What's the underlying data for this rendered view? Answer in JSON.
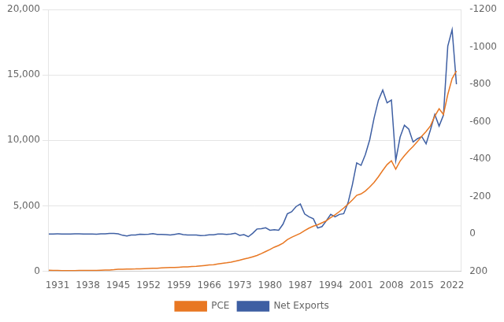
{
  "chart_data": {
    "type": "line",
    "grid": "y",
    "legend": "bottom",
    "x": [
      1929,
      1930,
      1931,
      1932,
      1933,
      1934,
      1935,
      1936,
      1937,
      1938,
      1939,
      1940,
      1941,
      1942,
      1943,
      1944,
      1945,
      1946,
      1947,
      1948,
      1949,
      1950,
      1951,
      1952,
      1953,
      1954,
      1955,
      1956,
      1957,
      1958,
      1959,
      1960,
      1961,
      1962,
      1963,
      1964,
      1965,
      1966,
      1967,
      1968,
      1969,
      1970,
      1971,
      1972,
      1973,
      1974,
      1975,
      1976,
      1977,
      1978,
      1979,
      1980,
      1981,
      1982,
      1983,
      1984,
      1985,
      1986,
      1987,
      1988,
      1989,
      1990,
      1991,
      1992,
      1993,
      1994,
      1995,
      1996,
      1997,
      1998,
      1999,
      2000,
      2001,
      2002,
      2003,
      2004,
      2005,
      2006,
      2007,
      2008,
      2009,
      2010,
      2011,
      2012,
      2013,
      2014,
      2015,
      2016,
      2017,
      2018,
      2019,
      2020,
      2021,
      2022,
      2023
    ],
    "xlim": [
      1929,
      2024
    ],
    "xticks": [
      1931,
      1938,
      1945,
      1952,
      1959,
      1966,
      1973,
      1980,
      1987,
      1994,
      2001,
      2008,
      2015,
      2022
    ],
    "ylim": [
      0,
      20000
    ],
    "yticks": [
      0,
      {
        "value": 5000,
        "label": "5,000"
      },
      {
        "value": 10000,
        "label": "10,000"
      },
      {
        "value": 15000,
        "label": "15,000"
      },
      {
        "value": 20000,
        "label": "20,000"
      }
    ],
    "y2lim": [
      200,
      -1200
    ],
    "y2ticks": [
      200,
      0,
      -200,
      -400,
      -600,
      -800,
      -1000,
      -1200
    ],
    "series": [
      {
        "name": "PCE",
        "color": "#E87722",
        "values": [
          77.3,
          69.9,
          61.3,
          49.3,
          46.4,
          51.9,
          56.3,
          62.6,
          67.3,
          64.6,
          67.6,
          71.9,
          81.9,
          89.7,
          100.5,
          121.7,
          150.4,
          163.0,
          176.8,
          178.3,
          180.4,
          192.2,
          208.5,
          219.9,
          232.6,
          237.9,
          257.9,
          270.4,
          285.2,
          289.5,
          313.5,
          331.7,
          342.1,
          363.4,
          382.7,
          411.4,
          443.8,
          481.9,
          509.3,
          558.0,
          605.2,
          648.9,
          702.5,
          770.6,
          852.4,
          933.4,
          1012.8,
          1107.5,
          1210.0,
          1350.8,
          1509.8,
          1668.1,
          1843.2,
          1974.8,
          2153.0,
          2416.8,
          2596.4,
          2752.0,
          2900.1,
          3108.7,
          3297.3,
          3448.6,
          3558.0,
          3706.0,
          3861.0,
          4105.8,
          4316.8,
          4559.9,
          4831.0,
          5132.2,
          5448.1,
          5803.1,
          5911.8,
          6136.3,
          6438.6,
          6786.4,
          7220.0,
          7702.4,
          8148.1,
          8439.0,
          7796.1,
          8421.9,
          8830.8,
          9212.5,
          9541.9,
          9905.3,
          10317.3,
          10680.7,
          11106.7,
          11844.3,
          12419.4,
          11972.0,
          13505.5,
          14718.3,
          15308.0
        ]
      },
      {
        "name": "Net Exports",
        "color": "#3E5FA3",
        "axis": "y2",
        "values": [
          0.4,
          0.3,
          0.1,
          0.2,
          0.2,
          0.4,
          0.1,
          0.1,
          0.2,
          1.1,
          0.9,
          1.5,
          0.1,
          -0.2,
          -2.0,
          -2.1,
          -0.6,
          7.4,
          11.4,
          6.1,
          6.2,
          1.8,
          3.3,
          2.2,
          -1.6,
          2.3,
          2.4,
          4.2,
          5.5,
          2.3,
          -1.0,
          4.0,
          5.7,
          5.6,
          5.9,
          9.5,
          8.5,
          5.4,
          4.8,
          1.1,
          0.8,
          2.3,
          0.3,
          -3.9,
          8.2,
          4.3,
          15.4,
          -3.1,
          -26.2,
          -28.0,
          -32.6,
          -19.7,
          -22.6,
          -19.4,
          -51.7,
          -107.1,
          -118.5,
          -145.7,
          -159.6,
          -106.6,
          -91.4,
          -80.9,
          -31.5,
          -39.2,
          -70.3,
          -104.5,
          -91.5,
          -104.0,
          -108.1,
          -166.2,
          -263.1,
          -379.5,
          -366.4,
          -424.4,
          -503.4,
          -618.7,
          -714.4,
          -768.7,
          -700.3,
          -715.5,
          -392.0,
          -516.9,
          -580.8,
          -560.5,
          -491.2,
          -508.7,
          -520.7,
          -481.7,
          -555.8,
          -638.2,
          -576.7,
          -634.3,
          -1003.7,
          -1091.4,
          -800.0
        ]
      }
    ]
  }
}
